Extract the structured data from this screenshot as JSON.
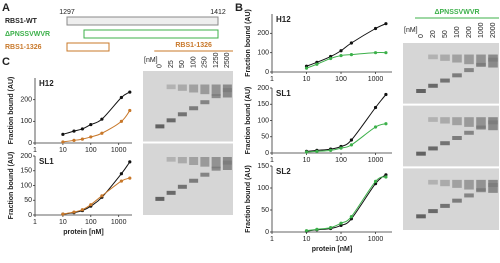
{
  "panel_labels": [
    "A",
    "B",
    "C"
  ],
  "diagram": {
    "start": 1297,
    "end": 1412,
    "constructs": [
      {
        "label": "RBS1-WT",
        "color": "#999999"
      },
      {
        "label": "ΔPNSSVWVR",
        "color": "#3cb04a"
      },
      {
        "label": "RBS1-1326",
        "color": "#c8782a"
      }
    ]
  },
  "gels": [
    {
      "title": "RBS1-1326",
      "color": "#c8782a",
      "unit": "[nM]",
      "lanes": [
        "0",
        "25",
        "50",
        "100",
        "250",
        "1250",
        "2500"
      ]
    },
    {
      "title": "ΔPNSSVWVR",
      "color": "#3cb04a",
      "unit": "[nM]",
      "lanes": [
        "0",
        "20",
        "50",
        "100",
        "200",
        "1000",
        "2000"
      ]
    }
  ],
  "chart_data": [
    {
      "type": "scatter",
      "title": "H12",
      "y_label": "Fraction bound (AU)",
      "xscale": "log",
      "xlim": [
        1,
        3000
      ],
      "xticks": [
        1,
        10,
        100,
        1000
      ],
      "ylim": [
        0,
        300
      ],
      "yticks": [
        0,
        100,
        200
      ],
      "series": [
        {
          "color": "#111111",
          "x": [
            10,
            25,
            50,
            100,
            250,
            1250,
            2500
          ],
          "values": [
            40,
            55,
            65,
            85,
            110,
            210,
            235
          ]
        },
        {
          "color": "#c8782a",
          "x": [
            10,
            25,
            50,
            100,
            250,
            1250,
            2500
          ],
          "values": [
            5,
            12,
            18,
            28,
            45,
            100,
            150
          ]
        }
      ]
    },
    {
      "type": "scatter",
      "title": "SL1",
      "y_label": "Fraction bound (AU)",
      "x_label": "protein [nM]",
      "xscale": "log",
      "xlim": [
        1,
        3000
      ],
      "xticks": [
        1,
        10,
        100,
        1000
      ],
      "ylim": [
        0,
        200
      ],
      "yticks": [
        0,
        50,
        100,
        150,
        200
      ],
      "series": [
        {
          "color": "#111111",
          "x": [
            10,
            25,
            50,
            100,
            250,
            1250,
            2500
          ],
          "values": [
            3,
            8,
            15,
            30,
            60,
            140,
            180
          ]
        },
        {
          "color": "#c8782a",
          "x": [
            10,
            25,
            50,
            100,
            250,
            1250,
            2500
          ],
          "values": [
            3,
            10,
            18,
            35,
            65,
            115,
            125
          ]
        }
      ]
    },
    {
      "type": "scatter",
      "title": "H12",
      "y_label": "Fraction bound (AU)",
      "xscale": "log",
      "xlim": [
        1,
        3000
      ],
      "xticks": [
        1,
        10,
        100,
        1000
      ],
      "ylim": [
        0,
        300
      ],
      "yticks": [
        0,
        100,
        200
      ],
      "series": [
        {
          "color": "#111111",
          "x": [
            10,
            20,
            50,
            100,
            200,
            1000,
            2000
          ],
          "values": [
            30,
            50,
            80,
            110,
            150,
            225,
            250
          ]
        },
        {
          "color": "#3cb04a",
          "x": [
            10,
            20,
            50,
            100,
            200,
            1000,
            2000
          ],
          "values": [
            20,
            40,
            70,
            85,
            90,
            100,
            100
          ]
        }
      ]
    },
    {
      "type": "scatter",
      "title": "SL1",
      "y_label": "Fraction bound (AU)",
      "xscale": "log",
      "xlim": [
        1,
        3000
      ],
      "xticks": [
        1,
        10,
        100,
        1000
      ],
      "ylim": [
        0,
        200
      ],
      "yticks": [
        0,
        50,
        100,
        150,
        200
      ],
      "series": [
        {
          "color": "#111111",
          "x": [
            10,
            20,
            50,
            100,
            200,
            1000,
            2000
          ],
          "values": [
            5,
            8,
            12,
            20,
            40,
            140,
            180
          ]
        },
        {
          "color": "#3cb04a",
          "x": [
            10,
            20,
            50,
            100,
            200,
            1000,
            2000
          ],
          "values": [
            3,
            5,
            8,
            15,
            25,
            80,
            90
          ]
        }
      ]
    },
    {
      "type": "scatter",
      "title": "SL2",
      "y_label": "Fraction bound (AU)",
      "x_label": "protein [nM]",
      "xscale": "log",
      "xlim": [
        1,
        3000
      ],
      "xticks": [
        1,
        10,
        100,
        1000
      ],
      "ylim": [
        0,
        150
      ],
      "yticks": [
        0,
        50,
        100,
        150
      ],
      "series": [
        {
          "color": "#111111",
          "x": [
            10,
            20,
            50,
            100,
            200,
            1000,
            2000
          ],
          "values": [
            2,
            5,
            8,
            15,
            30,
            110,
            130
          ]
        },
        {
          "color": "#3cb04a",
          "x": [
            10,
            20,
            50,
            100,
            200,
            1000,
            2000
          ],
          "values": [
            3,
            6,
            10,
            20,
            35,
            115,
            125
          ]
        }
      ]
    }
  ]
}
